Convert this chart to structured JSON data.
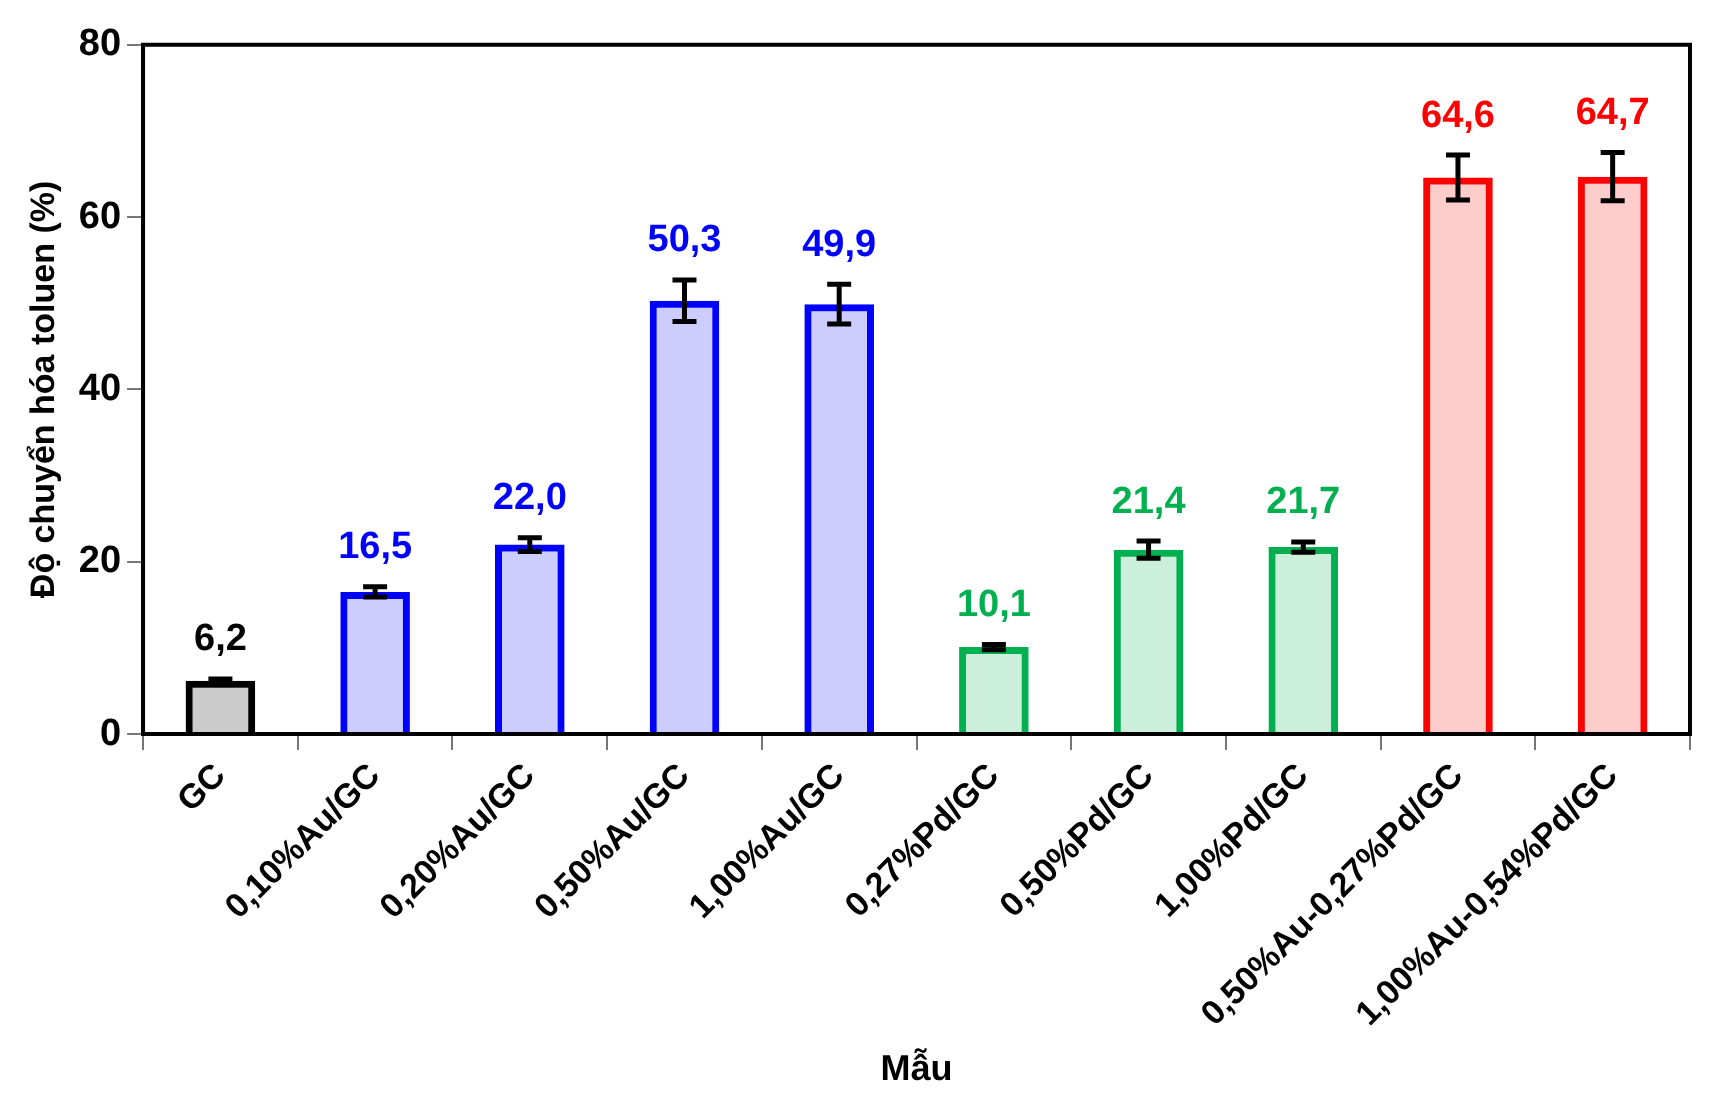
{
  "chart_data": {
    "type": "bar",
    "xlabel": "Mẫu",
    "ylabel": "Độ chuyển hóa toluen (%)",
    "categories": [
      "GC",
      "0,10%Au/GC",
      "0,20%Au/GC",
      "0,50%Au/GC",
      "1,00%Au/GC",
      "0,27%Pd/GC",
      "0,50%Pd/GC",
      "1,00%Pd/GC",
      "0,50%Au-0,27%Pd/GC",
      "1,00%Au-0,54%Pd/GC"
    ],
    "values": [
      6.2,
      16.5,
      22.0,
      50.3,
      49.9,
      10.1,
      21.4,
      21.7,
      64.6,
      64.7
    ],
    "value_labels": [
      "6,2",
      "16,5",
      "22,0",
      "50,3",
      "49,9",
      "10,1",
      "21,4",
      "21,7",
      "64,6",
      "64,7"
    ],
    "errors": [
      0.2,
      0.6,
      0.8,
      2.4,
      2.3,
      0.3,
      1.0,
      0.6,
      2.6,
      2.8
    ],
    "colors": [
      "#000000",
      "#0000ff",
      "#0000ff",
      "#0000ff",
      "#0000ff",
      "#00b050",
      "#00b050",
      "#00b050",
      "#ff0000",
      "#ff0000"
    ],
    "ylim": [
      0,
      80
    ],
    "yticks": [
      0,
      20,
      40,
      60,
      80
    ],
    "grid": false,
    "legend": false
  }
}
